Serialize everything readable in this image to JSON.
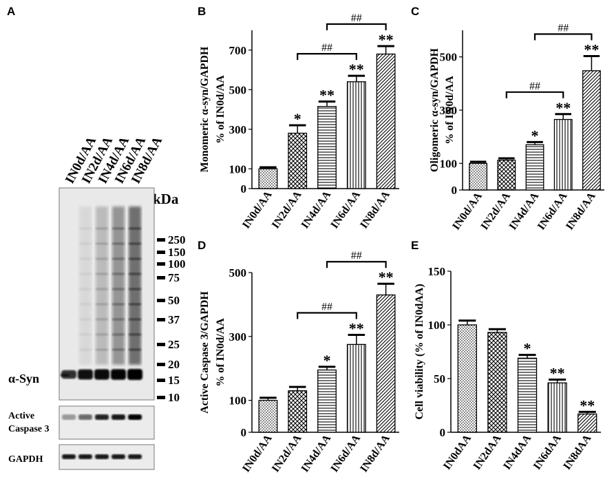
{
  "panel_letters": {
    "A": "A",
    "B": "B",
    "C": "C",
    "D": "D",
    "E": "E"
  },
  "blot": {
    "lanes": [
      "IN0d/AA",
      "IN2d/AA",
      "IN4d/AA",
      "IN6d/AA",
      "IN8d/AA"
    ],
    "kda_label": "kDa",
    "markers": [
      "250",
      "150",
      "100",
      "75",
      "50",
      "37",
      "25",
      "20",
      "15",
      "10"
    ],
    "rows": [
      "α-Syn",
      "Active Caspase 3",
      "GAPDH"
    ],
    "row_labels": {
      "syn": "α-Syn",
      "casp_line1": "Active",
      "casp_line2": "Caspase 3",
      "gapdh": "GAPDH"
    }
  },
  "chart_data": [
    {
      "panel": "B",
      "type": "bar",
      "categories": [
        "IN0d/AA",
        "IN2d/AA",
        "IN4d/AA",
        "IN6d/AA",
        "IN8d/AA"
      ],
      "values": [
        100,
        280,
        415,
        540,
        680
      ],
      "errors": [
        8,
        40,
        25,
        30,
        40
      ],
      "sig": [
        "",
        "*",
        "**",
        "**",
        "**"
      ],
      "ylabel_line1": "Monomeric α-syn/GAPDH",
      "ylabel_line2": "% of IN0d/AA",
      "ylim": [
        0,
        800
      ],
      "yticks": [
        0,
        100,
        300,
        500,
        700
      ],
      "brackets": [
        {
          "from": 1,
          "to": 3,
          "label": "##"
        },
        {
          "from": 2,
          "to": 4,
          "label": "##"
        }
      ]
    },
    {
      "panel": "C",
      "type": "bar",
      "categories": [
        "IN0d/AA",
        "IN2d/AA",
        "IN4d/AA",
        "IN6d/AA",
        "IN8d/AA"
      ],
      "values": [
        100,
        112,
        170,
        265,
        448
      ],
      "errors": [
        6,
        7,
        10,
        20,
        55
      ],
      "sig": [
        "",
        "",
        "*",
        "**",
        "**"
      ],
      "ylabel_line1": "Oligomeric α-syn/GAPDH",
      "ylabel_line2": "% of IN0d/AA",
      "ylim": [
        0,
        600
      ],
      "yticks": [
        0,
        100,
        300,
        500
      ],
      "brackets": [
        {
          "from": 1,
          "to": 3,
          "label": "##"
        },
        {
          "from": 2,
          "to": 4,
          "label": "##"
        }
      ]
    },
    {
      "panel": "D",
      "type": "bar",
      "categories": [
        "IN0d/AA",
        "IN2d/AA",
        "IN4d/AA",
        "IN6d/AA",
        "IN8d/AA"
      ],
      "values": [
        100,
        130,
        195,
        275,
        430
      ],
      "errors": [
        8,
        12,
        10,
        30,
        35
      ],
      "sig": [
        "",
        "",
        "*",
        "**",
        "**"
      ],
      "ylabel_line1": "Active Caspase 3/GAPDH",
      "ylabel_line2": "% of IN0d/AA",
      "ylim": [
        0,
        500
      ],
      "yticks": [
        0,
        100,
        300,
        500
      ],
      "brackets": [
        {
          "from": 1,
          "to": 3,
          "label": "##"
        },
        {
          "from": 2,
          "to": 4,
          "label": "##"
        }
      ]
    },
    {
      "panel": "E",
      "type": "bar",
      "categories": [
        "IN0dAA",
        "IN2dAA",
        "IN4dAA",
        "IN6dAA",
        "IN8dAA"
      ],
      "values": [
        100,
        93,
        69,
        46,
        17
      ],
      "errors": [
        4,
        3,
        3,
        3,
        2
      ],
      "sig": [
        "",
        "",
        "*",
        "**",
        "**"
      ],
      "ylabel_line1": "Cell viability (% of IN0dAA)",
      "ylabel_line2": "",
      "ylim": [
        0,
        150
      ],
      "yticks": [
        0,
        50,
        100,
        150
      ],
      "brackets": []
    }
  ],
  "colors": {
    "ink": "#000000",
    "bar_fill": "#ffffff",
    "blot_bg": "#e8e8e8",
    "band": "#111111"
  },
  "patterns": [
    "dots",
    "checker",
    "hlines",
    "vlines",
    "diag"
  ]
}
